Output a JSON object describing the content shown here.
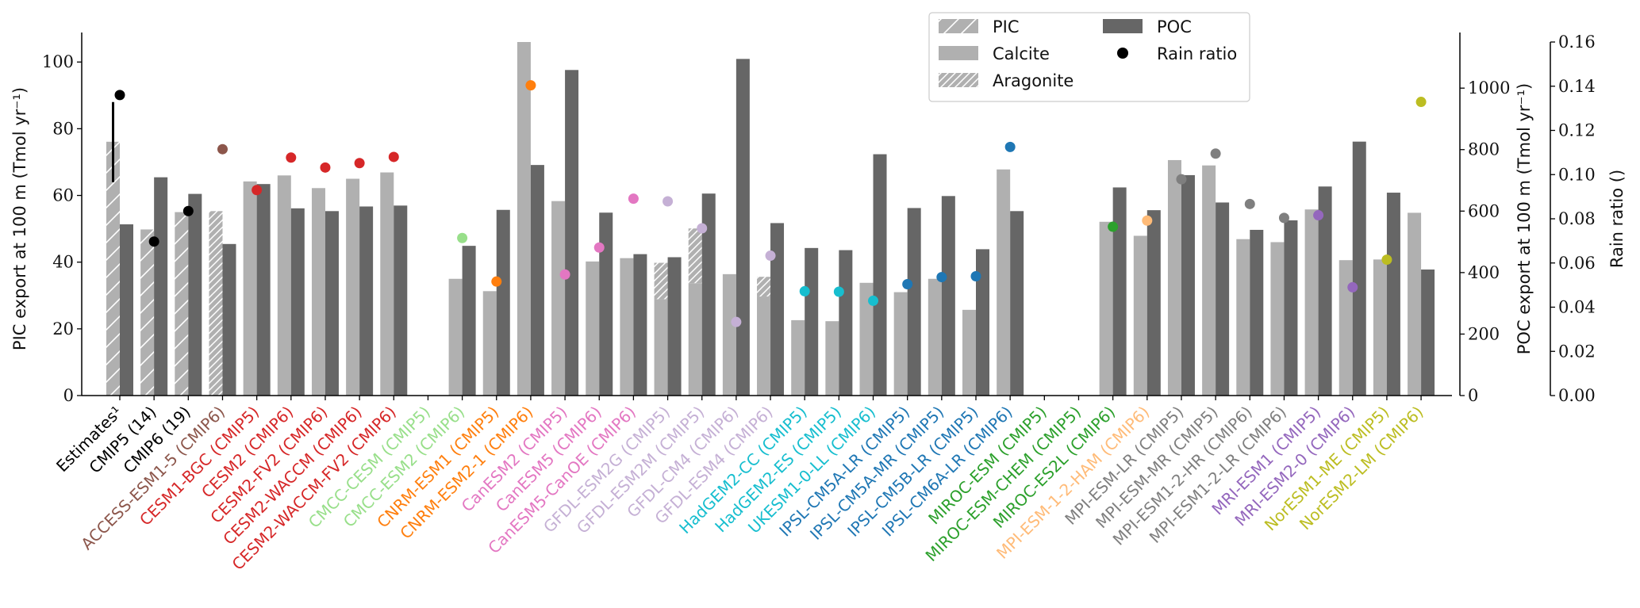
{
  "chart_data": {
    "type": "bar",
    "title": "",
    "left_axis": {
      "label": "PIC export at 100 m (Tmol yr⁻¹)",
      "ylim": [
        0,
        106
      ],
      "ticks": [
        0,
        20,
        40,
        60,
        80,
        100
      ]
    },
    "right_axis_poc": {
      "label": "POC export at 100 m (Tmol yr⁻¹)",
      "ylim": [
        0,
        1150
      ],
      "ticks": [
        0,
        200,
        400,
        600,
        800,
        1000
      ]
    },
    "right_axis_rain": {
      "label": "Rain ratio ()",
      "ylim": [
        0,
        0.16
      ],
      "ticks": [
        "0.00",
        "0.02",
        "0.04",
        "0.06",
        "0.08",
        "0.10",
        "0.12",
        "0.14",
        "0.16"
      ]
    },
    "legend": {
      "placement": "top-center-right",
      "entries": [
        {
          "label": "PIC",
          "kind": "pic"
        },
        {
          "label": "Calcite",
          "kind": "calcite"
        },
        {
          "label": "Aragonite",
          "kind": "aragonite"
        },
        {
          "label": "POC",
          "kind": "poc"
        },
        {
          "label": "Rain ratio",
          "kind": "rain"
        }
      ]
    },
    "colors": {
      "pic": "#b0b0b0",
      "poc": "#666666",
      "hatch": "#ffffff"
    },
    "estimate_error": {
      "model": "Estimates¹",
      "pic_range": [
        64,
        88
      ]
    },
    "models": [
      {
        "name": "Estimates¹",
        "color": "#000000",
        "pic_type": "pic",
        "pic": 76.1,
        "poc": 557,
        "rain": 0.136
      },
      {
        "name": "CMIP5 (14)",
        "color": "#000000",
        "pic_type": "pic",
        "pic": 49.8,
        "poc": 710,
        "rain": 0.0697
      },
      {
        "name": "CMIP6 (19)",
        "color": "#000000",
        "pic_type": "pic",
        "pic": 55.0,
        "poc": 656,
        "rain": 0.0835
      },
      {
        "name": "ACCESS-ESM1-5 (CMIP6)",
        "color": "#8c564b",
        "pic_type": "aragonite",
        "pic": 55.3,
        "poc": 493,
        "rain": 0.1115
      },
      {
        "name": "CESM1-BGC (CMIP5)",
        "color": "#d62728",
        "pic_type": "calcite",
        "pic": 64.2,
        "poc": 688,
        "rain": 0.093
      },
      {
        "name": "CESM2 (CMIP6)",
        "color": "#d62728",
        "pic_type": "calcite",
        "pic": 66.0,
        "poc": 609,
        "rain": 0.1077
      },
      {
        "name": "CESM2-FV2 (CMIP6)",
        "color": "#d62728",
        "pic_type": "calcite",
        "pic": 62.2,
        "poc": 600,
        "rain": 0.1032
      },
      {
        "name": "CESM2-WACCM (CMIP6)",
        "color": "#d62728",
        "pic_type": "calcite",
        "pic": 65.0,
        "poc": 615,
        "rain": 0.1052
      },
      {
        "name": "CESM2-WACCM-FV2 (CMIP6)",
        "color": "#d62728",
        "pic_type": "calcite",
        "pic": 66.9,
        "poc": 618,
        "rain": 0.108
      },
      {
        "name": "CMCC-CESM (CMIP5)",
        "color": "#98df8a",
        "pic_type": null,
        "pic": null,
        "poc": null,
        "rain": null
      },
      {
        "name": "CMCC-ESM2 (CMIP6)",
        "color": "#98df8a",
        "pic_type": "calcite",
        "pic": 35.0,
        "poc": 487,
        "rain": 0.0713
      },
      {
        "name": "CNRM-ESM1 (CMIP5)",
        "color": "#ff7f0e",
        "pic_type": "calcite",
        "pic": 31.3,
        "poc": 604,
        "rain": 0.0516
      },
      {
        "name": "CNRM-ESM2-1 (CMIP6)",
        "color": "#ff7f0e",
        "pic_type": "calcite",
        "pic": 106.0,
        "poc": 750,
        "rain": 0.1404
      },
      {
        "name": "CanESM2 (CMIP5)",
        "color": "#e377c2",
        "pic_type": "calcite",
        "pic": 58.3,
        "poc": 1059,
        "rain": 0.0548
      },
      {
        "name": "CanESM5 (CMIP6)",
        "color": "#e377c2",
        "pic_type": "calcite",
        "pic": 40.2,
        "poc": 595,
        "rain": 0.067
      },
      {
        "name": "CanESM5-CanOE (CMIP6)",
        "color": "#e377c2",
        "pic_type": "calcite",
        "pic": 41.2,
        "poc": 460,
        "rain": 0.0891
      },
      {
        "name": "GFDL-ESM2G (CMIP5)",
        "color": "#c5b0d5",
        "pic_type": "stacked",
        "calcite": 28.9,
        "aragonite": 10.9,
        "pic": 39.8,
        "poc": 450,
        "rain": 0.0879
      },
      {
        "name": "GFDL-ESM2M (CMIP5)",
        "color": "#c5b0d5",
        "pic_type": "stacked",
        "calcite": 33.7,
        "aragonite": 16.4,
        "pic": 50.1,
        "poc": 657,
        "rain": 0.0757
      },
      {
        "name": "GFDL-CM4 (CMIP6)",
        "color": "#c5b0d5",
        "pic_type": "calcite",
        "pic": 36.4,
        "poc": 1095,
        "rain": 0.0333
      },
      {
        "name": "GFDL-ESM4 (CMIP6)",
        "color": "#c5b0d5",
        "pic_type": "stacked",
        "calcite": 29.7,
        "aragonite": 5.9,
        "pic": 35.6,
        "poc": 561,
        "rain": 0.0633
      },
      {
        "name": "HadGEM2-CC (CMIP5)",
        "color": "#17becf",
        "pic_type": "calcite",
        "pic": 22.6,
        "poc": 480,
        "rain": 0.0472
      },
      {
        "name": "HadGEM2-ES (CMIP5)",
        "color": "#17becf",
        "pic_type": "calcite",
        "pic": 22.3,
        "poc": 473,
        "rain": 0.047
      },
      {
        "name": "UKESM1-0-LL (CMIP6)",
        "color": "#17becf",
        "pic_type": "calcite",
        "pic": 33.8,
        "poc": 785,
        "rain": 0.0429
      },
      {
        "name": "IPSL-CM5A-LR (CMIP5)",
        "color": "#1f77b4",
        "pic_type": "calcite",
        "pic": 31.0,
        "poc": 610,
        "rain": 0.0504
      },
      {
        "name": "IPSL-CM5A-MR (CMIP5)",
        "color": "#1f77b4",
        "pic_type": "calcite",
        "pic": 35.0,
        "poc": 649,
        "rain": 0.0536
      },
      {
        "name": "IPSL-CM5B-LR (CMIP5)",
        "color": "#1f77b4",
        "pic_type": "calcite",
        "pic": 25.7,
        "poc": 476,
        "rain": 0.054
      },
      {
        "name": "IPSL-CM6A-LR (CMIP6)",
        "color": "#1f77b4",
        "pic_type": "calcite",
        "pic": 67.8,
        "poc": 600,
        "rain": 0.1125
      },
      {
        "name": "MIROC-ESM (CMIP5)",
        "color": "#2ca02c",
        "pic_type": null,
        "pic": null,
        "poc": null,
        "rain": null
      },
      {
        "name": "MIROC-ESM-CHEM (CMIP5)",
        "color": "#2ca02c",
        "pic_type": null,
        "pic": null,
        "poc": null,
        "rain": null
      },
      {
        "name": "MIROC-ES2L (CMIP6)",
        "color": "#2ca02c",
        "pic_type": "calcite",
        "pic": 52.1,
        "poc": 677,
        "rain": 0.0764
      },
      {
        "name": "MPI-ESM-1-2-HAM (CMIP6)",
        "color": "#ffbb78",
        "pic_type": "calcite",
        "pic": 47.9,
        "poc": 603,
        "rain": 0.0792
      },
      {
        "name": "MPI-ESM-LR (CMIP5)",
        "color": "#7f7f7f",
        "pic_type": "calcite",
        "pic": 70.6,
        "poc": 717,
        "rain": 0.0979
      },
      {
        "name": "MPI-ESM-MR (CMIP5)",
        "color": "#7f7f7f",
        "pic_type": "calcite",
        "pic": 69.0,
        "poc": 628,
        "rain": 0.1095
      },
      {
        "name": "MPI-ESM1-2-HR (CMIP6)",
        "color": "#7f7f7f",
        "pic_type": "calcite",
        "pic": 46.9,
        "poc": 539,
        "rain": 0.0867
      },
      {
        "name": "MPI-ESM1-2-LR (CMIP6)",
        "color": "#7f7f7f",
        "pic_type": "calcite",
        "pic": 46.0,
        "poc": 570,
        "rain": 0.0804
      },
      {
        "name": "MRI-ESM1 (CMIP5)",
        "color": "#9467bd",
        "pic_type": "calcite",
        "pic": 55.8,
        "poc": 680,
        "rain": 0.0816
      },
      {
        "name": "MRI-ESM2-0 (CMIP6)",
        "color": "#9467bd",
        "pic_type": "calcite",
        "pic": 40.6,
        "poc": 826,
        "rain": 0.049
      },
      {
        "name": "NorESM1-ME (CMIP5)",
        "color": "#bcbd22",
        "pic_type": "calcite",
        "pic": 40.8,
        "poc": 660,
        "rain": 0.0615
      },
      {
        "name": "NorESM2-LM (CMIP6)",
        "color": "#bcbd22",
        "pic_type": "calcite",
        "pic": 54.8,
        "poc": 410,
        "rain": 0.1329
      }
    ]
  }
}
